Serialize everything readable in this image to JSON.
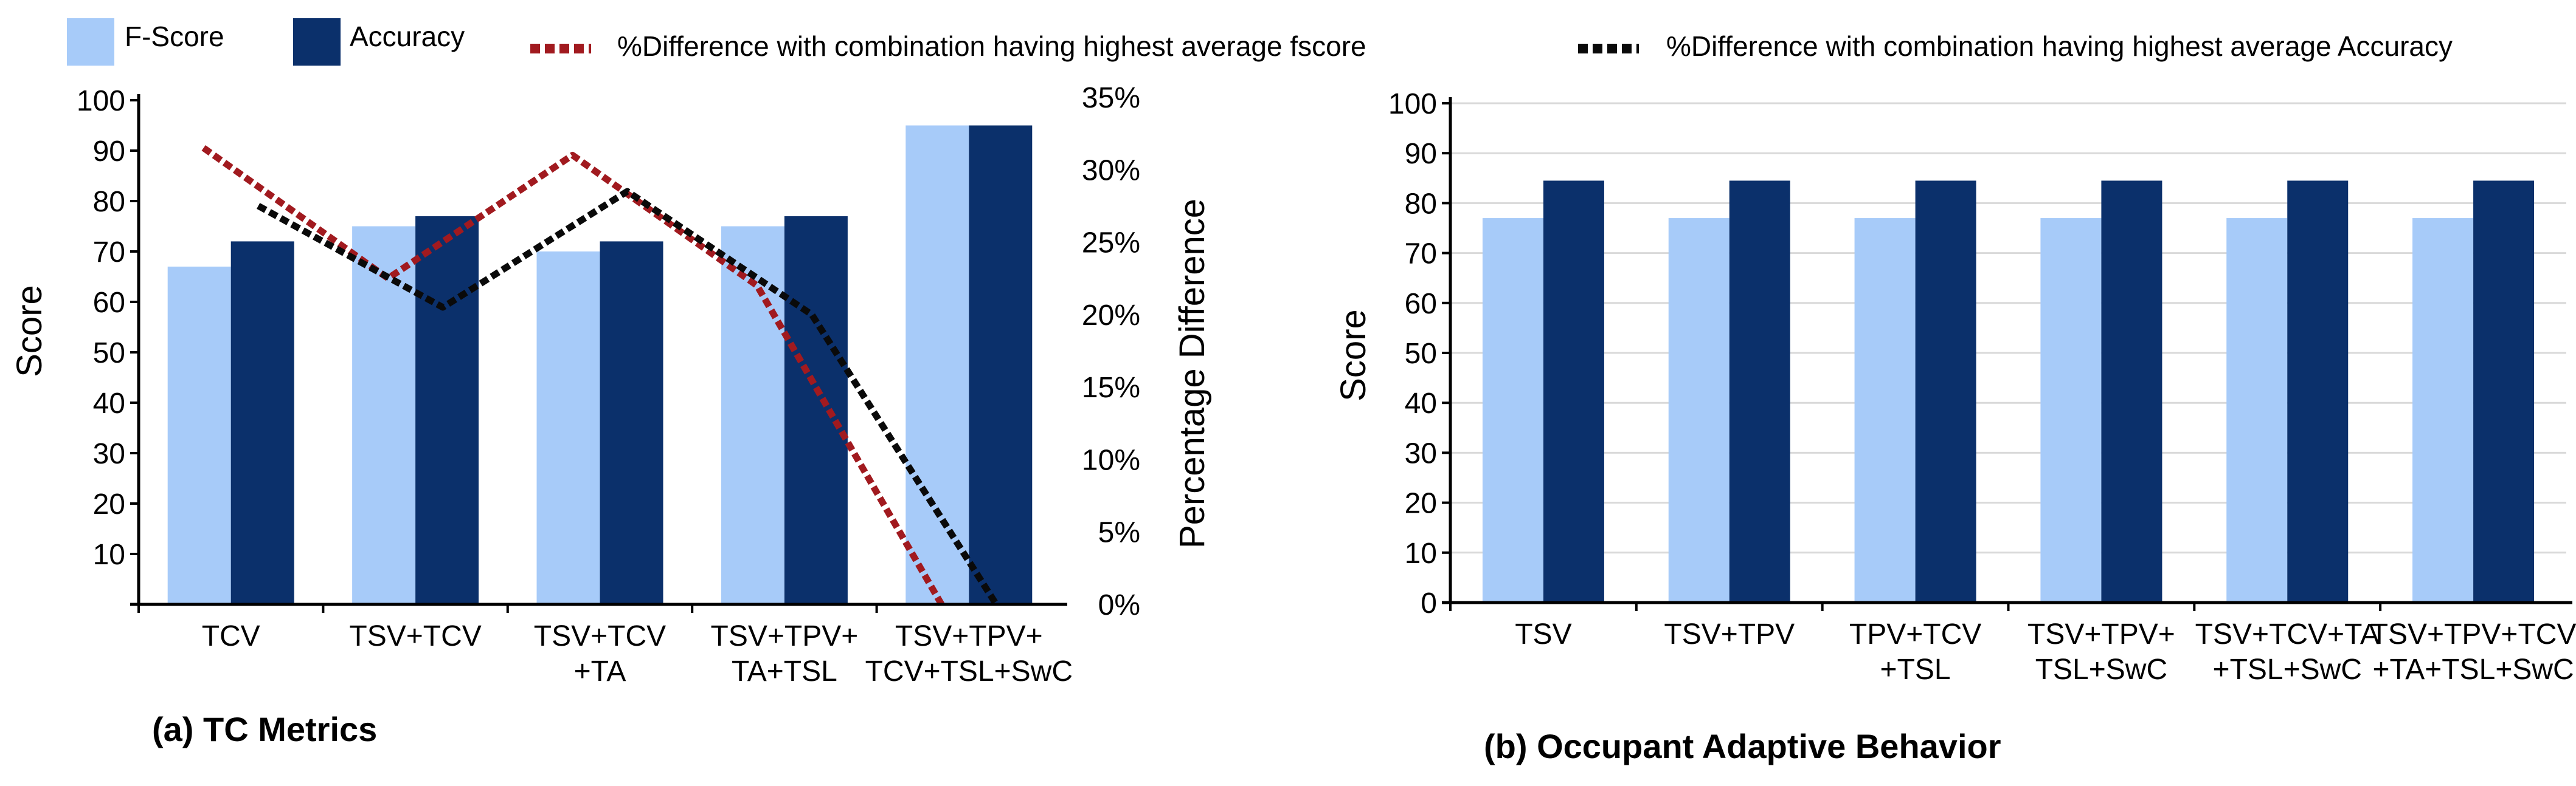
{
  "colors": {
    "fscore": "#a7cbf9",
    "accuracy": "#0b306b",
    "diff_fscore": "#a11a1f",
    "diff_accuracy": "#0a0a0a",
    "axis": "#000000",
    "grid": "#d9d9d9"
  },
  "legend": {
    "fscore": "F-Score",
    "accuracy": "Accuracy",
    "diff_fscore": "%Difference with combination having highest average fscore",
    "diff_accuracy": "%Difference with combination having highest average Accuracy"
  },
  "chart_data": [
    {
      "type": "bar",
      "caption": "(a) TC Metrics",
      "ylabel": "Score",
      "y2label": "Percentage Difference",
      "ylim": [
        0,
        100
      ],
      "y2lim": [
        0,
        35
      ],
      "yticks": [
        "10",
        "20",
        "30",
        "40",
        "50",
        "60",
        "70",
        "80",
        "90",
        "100"
      ],
      "y2ticks": [
        "0%",
        "5%",
        "10%",
        "15%",
        "20%",
        "25%",
        "30%",
        "35%"
      ],
      "categories": [
        [
          "TCV"
        ],
        [
          "TSV+TCV"
        ],
        [
          "TSV+TCV",
          "+TA"
        ],
        [
          "TSV+TPV+",
          "TA+TSL"
        ],
        [
          "TSV+TPV+",
          "TCV+TSL+SwC"
        ]
      ],
      "series": [
        {
          "name": "F-Score",
          "values": [
            67,
            75,
            70,
            75,
            95
          ]
        },
        {
          "name": "Accuracy",
          "values": [
            72,
            77,
            72,
            77,
            95
          ]
        }
      ],
      "lines": [
        {
          "name": "%Difference with combination having highest average fscore",
          "values": [
            31.5,
            22.5,
            31,
            22,
            0
          ]
        },
        {
          "name": "%Difference with combination having highest average Accuracy",
          "values": [
            27.5,
            20.5,
            28.5,
            20,
            0
          ]
        }
      ]
    },
    {
      "type": "bar",
      "caption": "(b) Occupant Adaptive Behavior",
      "ylabel": "Score",
      "ylim": [
        0,
        100
      ],
      "yticks": [
        "0",
        "10",
        "20",
        "30",
        "40",
        "50",
        "60",
        "70",
        "80",
        "90",
        "100"
      ],
      "grid": true,
      "categories": [
        [
          "TSV"
        ],
        [
          "TSV+TPV"
        ],
        [
          "TPV+TCV",
          "+TSL"
        ],
        [
          "TSV+TPV+",
          "TSL+SwC"
        ],
        [
          "TSV+TCV+TA",
          "+TSL+SwC"
        ],
        [
          "TSV+TPV+TCV",
          "+TA+TSL+SwC"
        ]
      ],
      "series": [
        {
          "name": "F-Score",
          "values": [
            77,
            77,
            77,
            77,
            77,
            77
          ]
        },
        {
          "name": "Accuracy",
          "values": [
            84.5,
            84.5,
            84.5,
            84.5,
            84.5,
            84.5
          ]
        }
      ]
    }
  ]
}
